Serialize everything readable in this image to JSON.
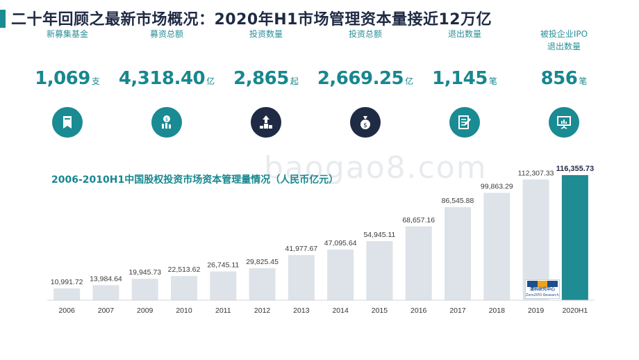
{
  "title": "二十年回顾之最新市场概况：2020年H1市场管理资本量接近12万亿",
  "kpis": [
    {
      "label": "新募集基金",
      "value": "1,069",
      "unit": "支",
      "icon": "bookmark-icon",
      "icon_color": "#1a8a93"
    },
    {
      "label": "募资总额",
      "value": "4,318.40",
      "unit": "亿",
      "icon": "coin-bars-icon",
      "icon_color": "#1a8a93"
    },
    {
      "label": "投资数量",
      "value": "2,865",
      "unit": "起",
      "icon": "podium-growth-icon",
      "icon_color": "#1f2a44"
    },
    {
      "label": "投资总额",
      "value": "2,669.25",
      "unit": "亿",
      "icon": "money-bag-icon",
      "icon_color": "#1f2a44"
    },
    {
      "label": "退出数量",
      "value": "1,145",
      "unit": "笔",
      "icon": "checklist-pen-icon",
      "icon_color": "#1a8a93"
    },
    {
      "label": "被投企业IPO退出数量",
      "value": "856",
      "unit": "笔",
      "icon": "presentation-chart-icon",
      "icon_color": "#1a8a93"
    }
  ],
  "chart_data": {
    "type": "bar",
    "title": "2006-2010H1中国股权投资市场资本管理量情况（人民币亿元）",
    "categories": [
      "2006",
      "2007",
      "2009",
      "2010",
      "2011",
      "2012",
      "2013",
      "2014",
      "2015",
      "2016",
      "2017",
      "2018",
      "2019",
      "2020H1"
    ],
    "values": [
      10991.72,
      13984.64,
      19945.73,
      22513.62,
      26745.11,
      29825.45,
      41977.67,
      47095.64,
      54945.11,
      68657.16,
      86545.88,
      99863.29,
      112307.33,
      116355.73
    ],
    "value_labels": [
      "10,991.72",
      "13,984.64",
      "19,945.73",
      "22,513.62",
      "26,745.11",
      "29,825.45",
      "41,977.67",
      "47,095.64",
      "54,945.11",
      "68,657.16",
      "86,545.88",
      "99,863.29",
      "112,307.33",
      "116,355.73"
    ],
    "highlight_index": 13,
    "colors": {
      "bar": "#dde3e8",
      "highlight": "#1f8b93",
      "label": "#3a3a3a",
      "highlight_label": "#1f2a44"
    },
    "ylim": [
      0,
      116355.73
    ],
    "grid": false,
    "legend": "none",
    "xlabel": "",
    "ylabel": ""
  },
  "watermark": "baogao8.com",
  "stamp": {
    "line1": "清科研究中心",
    "line2": "Zero2IPO Research"
  }
}
